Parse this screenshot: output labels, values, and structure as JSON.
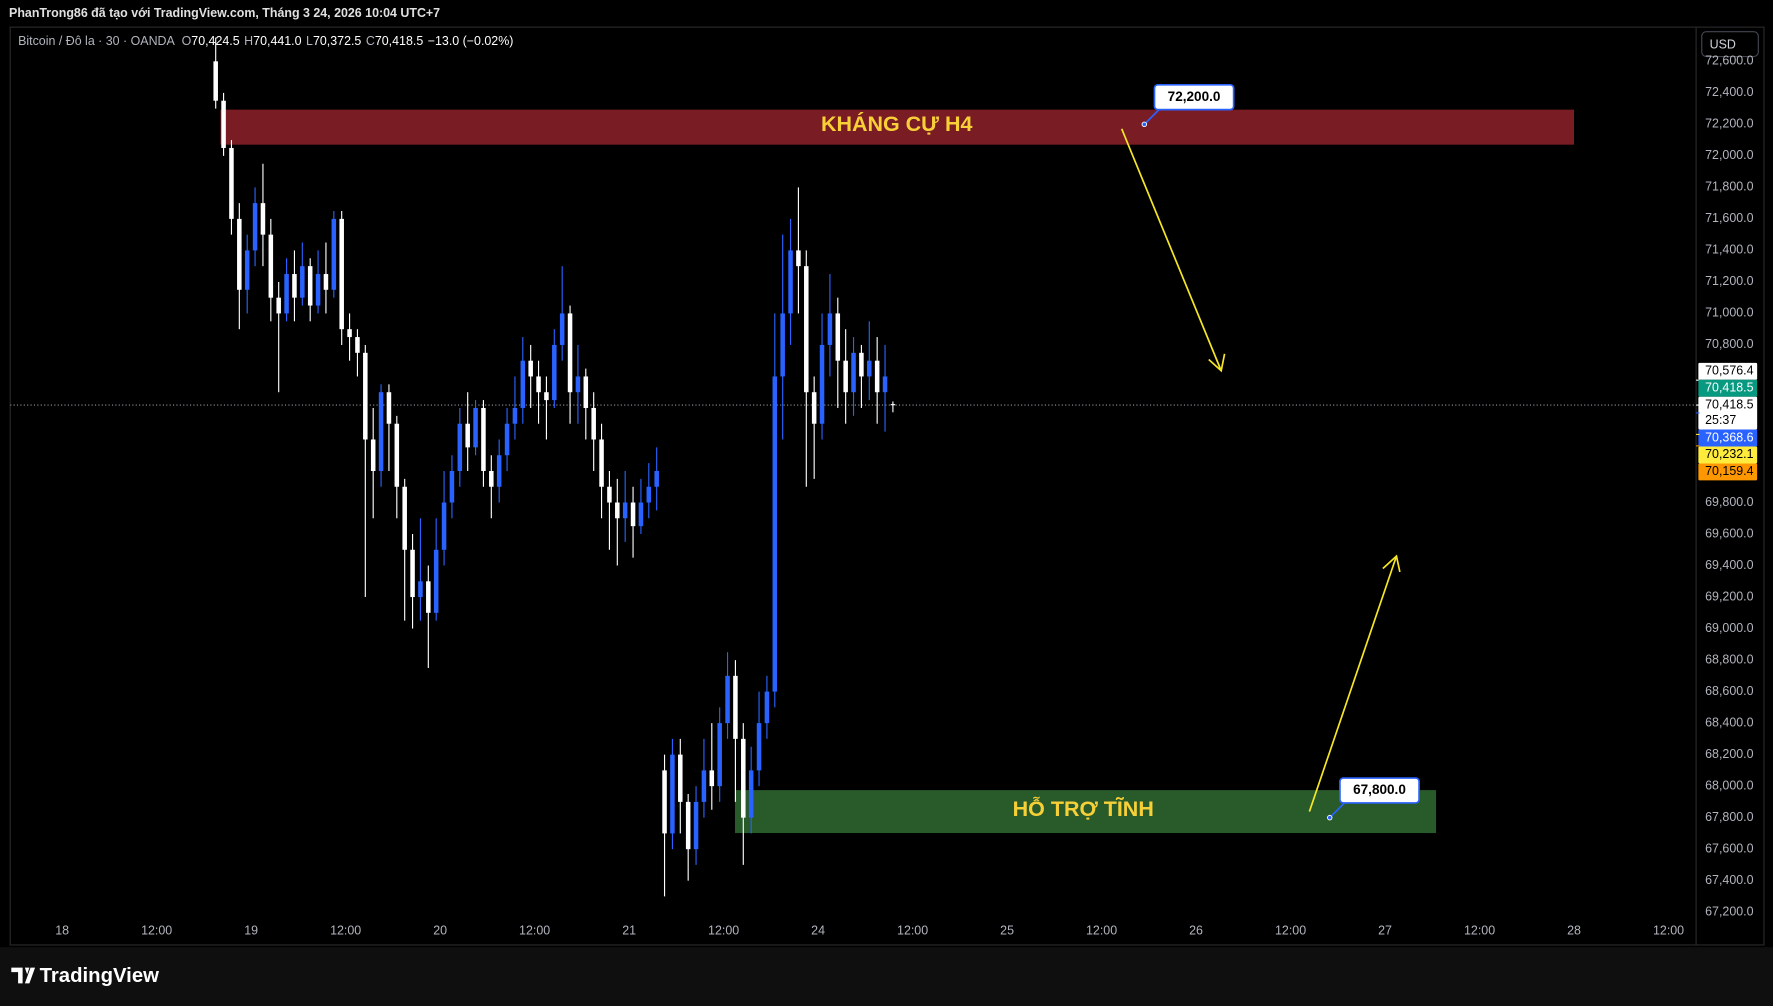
{
  "header": "PhanTrong86 đã tạo với TradingView.com, Tháng 3 24, 2026 10:04 UTC+7",
  "footer": "TradingView",
  "chart_data": {
    "type": "candlestick",
    "legend": {
      "symbol": "Bitcoin / Đô la · 30 · OANDA",
      "items": [
        {
          "key": "O",
          "label": "70,424.5"
        },
        {
          "key": "H",
          "label": "70,441.0"
        },
        {
          "key": "L",
          "label": "70,372.5"
        },
        {
          "key": "C",
          "label": "70,418.5"
        }
      ],
      "change": "−13.0 (−0.02%)"
    },
    "currency": "USD",
    "up_color": "#2962ff",
    "down_color": "#ffffff",
    "x": [
      39,
      41,
      43,
      45,
      47,
      49,
      51,
      53,
      55,
      57,
      59,
      61,
      63,
      65,
      67,
      69,
      71,
      73,
      75,
      77,
      79,
      81,
      83,
      85,
      87,
      89,
      91,
      93,
      95,
      97,
      99,
      101,
      103,
      105,
      107,
      109,
      111,
      113,
      115,
      117,
      119,
      121,
      123,
      125,
      127,
      129,
      131,
      133,
      135,
      137,
      139,
      141,
      143,
      145,
      147,
      149,
      151,
      153,
      155,
      157,
      159,
      161,
      163,
      165,
      167,
      169,
      171,
      173,
      175,
      177,
      179,
      181,
      183,
      185,
      187,
      189,
      191,
      193,
      195,
      197,
      199,
      201,
      203,
      205,
      207,
      209,
      211
    ],
    "open": [
      72600,
      72350,
      72050,
      71600,
      71150,
      71400,
      71700,
      71500,
      71100,
      71000,
      71250,
      71100,
      71300,
      71050,
      71250,
      71150,
      71600,
      70900,
      70850,
      70750,
      70200,
      70000,
      70500,
      70300,
      69900,
      69500,
      69200,
      69300,
      69100,
      69500,
      69800,
      70000,
      70300,
      70150,
      70400,
      70000,
      69900,
      70100,
      70300,
      70400,
      70700,
      70600,
      70500,
      70450,
      70800,
      71000,
      70500,
      70600,
      70400,
      70200,
      69900,
      69800,
      69700,
      69800,
      69650,
      69800,
      69900,
      68100,
      67700,
      68200,
      67900,
      67600,
      67900,
      68100,
      68000,
      68400,
      68700,
      68300,
      67800,
      68100,
      68400,
      68600,
      70600,
      71000,
      71400,
      71300,
      70500,
      70300,
      70800,
      71000,
      70700,
      70500,
      70750,
      70600,
      70700,
      70500,
      70424.5
    ],
    "high": [
      72750,
      72400,
      72100,
      71700,
      71500,
      71800,
      71950,
      71600,
      71200,
      71350,
      71400,
      71450,
      71350,
      71400,
      71450,
      71650,
      71650,
      71000,
      70900,
      70800,
      70400,
      70550,
      70550,
      70350,
      69950,
      69600,
      69700,
      69400,
      69700,
      70000,
      70100,
      70400,
      70500,
      70450,
      70450,
      70100,
      70200,
      70400,
      70600,
      70850,
      70800,
      70700,
      70600,
      70900,
      71300,
      71050,
      70800,
      70650,
      70500,
      70300,
      70000,
      69950,
      70000,
      69900,
      69950,
      70050,
      70150,
      68200,
      68300,
      68300,
      67950,
      68000,
      68300,
      68400,
      68500,
      68850,
      68800,
      68400,
      68250,
      68600,
      68700,
      71000,
      71500,
      71600,
      71800,
      71400,
      70600,
      71000,
      71250,
      71100,
      70900,
      70850,
      70800,
      70950,
      70850,
      70800,
      70441
    ],
    "low": [
      72300,
      72000,
      71500,
      70900,
      71000,
      71300,
      71300,
      70950,
      70500,
      70950,
      70950,
      71050,
      70950,
      71000,
      71000,
      71100,
      70800,
      70700,
      70600,
      69200,
      69700,
      69900,
      70000,
      69700,
      69050,
      69000,
      69050,
      68750,
      69050,
      69400,
      69700,
      69900,
      70000,
      70100,
      69900,
      69700,
      69800,
      70000,
      70200,
      70300,
      70400,
      70300,
      70200,
      70400,
      70700,
      70300,
      70300,
      70200,
      70000,
      69700,
      69500,
      69400,
      69550,
      69450,
      69600,
      69700,
      69750,
      67300,
      67600,
      67700,
      67400,
      67500,
      67800,
      67850,
      67900,
      68300,
      67900,
      67500,
      67700,
      68000,
      68300,
      68500,
      70200,
      70800,
      71000,
      69900,
      69950,
      70200,
      70600,
      70400,
      70300,
      70350,
      70400,
      70450,
      70300,
      70250,
      70372.5
    ],
    "close": [
      72350,
      72050,
      71600,
      71150,
      71400,
      71700,
      71500,
      71100,
      71000,
      71250,
      71100,
      71300,
      71050,
      71250,
      71150,
      71600,
      70900,
      70850,
      70750,
      70200,
      70000,
      70500,
      70300,
      69900,
      69500,
      69200,
      69300,
      69100,
      69500,
      69800,
      70000,
      70300,
      70150,
      70400,
      70000,
      69900,
      70100,
      70300,
      70400,
      70700,
      70600,
      70500,
      70450,
      70800,
      71000,
      70500,
      70600,
      70400,
      70200,
      69900,
      69800,
      69700,
      69800,
      69650,
      69800,
      69900,
      70000,
      67700,
      68200,
      67900,
      67600,
      67900,
      68100,
      68000,
      68400,
      68700,
      68300,
      67800,
      68100,
      68400,
      68600,
      70600,
      71000,
      71400,
      71300,
      70500,
      70300,
      70800,
      71000,
      70700,
      70500,
      70750,
      70600,
      70700,
      70500,
      70600,
      70418.5
    ],
    "xlim": [
      -13.2,
      415
    ],
    "xticks": [
      {
        "value": 0,
        "label": "18"
      },
      {
        "value": 24,
        "label": "12:00"
      },
      {
        "value": 48,
        "label": "19"
      },
      {
        "value": 72,
        "label": "12:00"
      },
      {
        "value": 96,
        "label": "20"
      },
      {
        "value": 120,
        "label": "12:00"
      },
      {
        "value": 144,
        "label": "21"
      },
      {
        "value": 168,
        "label": "12:00"
      },
      {
        "value": 192,
        "label": "24"
      },
      {
        "value": 216,
        "label": "12:00"
      },
      {
        "value": 240,
        "label": "25"
      },
      {
        "value": 264,
        "label": "12:00"
      },
      {
        "value": 288,
        "label": "26"
      },
      {
        "value": 312,
        "label": "12:00"
      },
      {
        "value": 336,
        "label": "27"
      },
      {
        "value": 360,
        "label": "12:00"
      },
      {
        "value": 384,
        "label": "28"
      },
      {
        "value": 408,
        "label": "12:00"
      }
    ],
    "ylim": [
      66992,
      72817
    ],
    "yticks": [
      {
        "value": 67200,
        "label": "67,200.0"
      },
      {
        "value": 67400,
        "label": "67,400.0"
      },
      {
        "value": 67600,
        "label": "67,600.0"
      },
      {
        "value": 67800,
        "label": "67,800.0"
      },
      {
        "value": 68000,
        "label": "68,000.0"
      },
      {
        "value": 68200,
        "label": "68,200.0"
      },
      {
        "value": 68400,
        "label": "68,400.0"
      },
      {
        "value": 68600,
        "label": "68,600.0"
      },
      {
        "value": 68800,
        "label": "68,800.0"
      },
      {
        "value": 69000,
        "label": "69,000.0"
      },
      {
        "value": 69200,
        "label": "69,200.0"
      },
      {
        "value": 69400,
        "label": "69,400.0"
      },
      {
        "value": 69600,
        "label": "69,600.0"
      },
      {
        "value": 69800,
        "label": "69,800.0"
      },
      {
        "value": 70000,
        "label": "70,000.0"
      },
      {
        "value": 70200,
        "label": "70,200.0"
      },
      {
        "value": 70400,
        "label": "70,400.0"
      },
      {
        "value": 70600,
        "label": "70,600.0"
      },
      {
        "value": 70800,
        "label": "70,800.0"
      },
      {
        "value": 71000,
        "label": "71,000.0"
      },
      {
        "value": 71200,
        "label": "71,200.0"
      },
      {
        "value": 71400,
        "label": "71,400.0"
      },
      {
        "value": 71600,
        "label": "71,600.0"
      },
      {
        "value": 71800,
        "label": "71,800.0"
      },
      {
        "value": 72000,
        "label": "72,000.0"
      },
      {
        "value": 72200,
        "label": "72,200.0"
      },
      {
        "value": 72400,
        "label": "72,400.0"
      },
      {
        "value": 72600,
        "label": "72,600.0"
      }
    ],
    "grid": false,
    "price_labels": [
      {
        "value": 70576.4,
        "label": "70,576.4",
        "color": "#ffffff",
        "text_color": "#000000"
      },
      {
        "value": 70418.5,
        "label": "70,418.5",
        "color": "#089981",
        "text_color": "#ffffff"
      },
      {
        "value": 70418.5,
        "label": "70,418.5",
        "countdown": "25:37",
        "color": "#ffffff",
        "text_color": "#000000"
      },
      {
        "value": 70368.6,
        "label": "70,368.6",
        "color": "#2962ff",
        "text_color": "#ffffff"
      },
      {
        "value": 70232.1,
        "label": "70,232.1",
        "color": "#ffeb3b",
        "text_color": "#000000"
      },
      {
        "value": 70159.4,
        "label": "70,159.4",
        "color": "#ff9800",
        "text_color": "#000000"
      }
    ],
    "annotations": {
      "resistance_label": "KHÁNG CỰ H4",
      "support_label": "HỖ TRỢ TĨNH",
      "callouts": [
        {
          "value": 72200,
          "label": "72,200.0"
        },
        {
          "value": 67800,
          "label": "67,800.0"
        }
      ]
    }
  }
}
